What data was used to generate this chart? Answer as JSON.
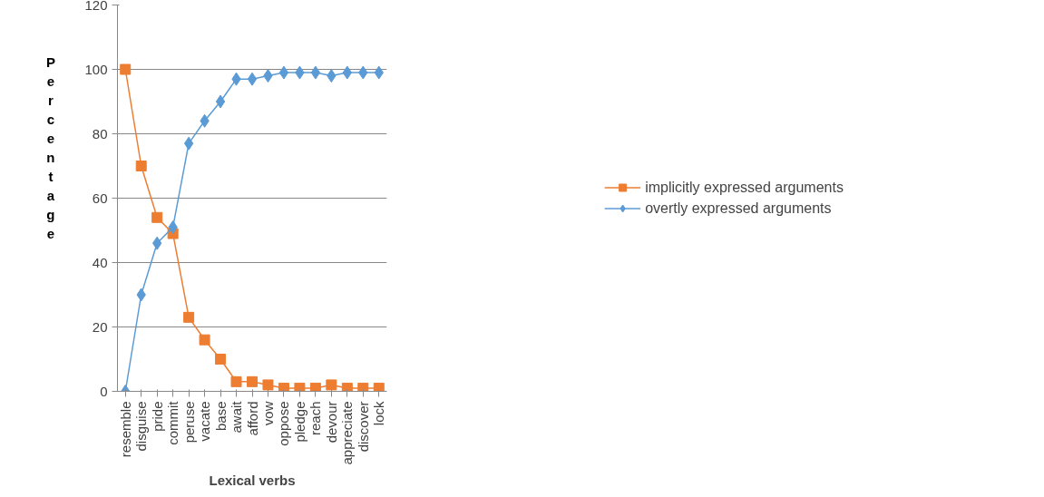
{
  "chart_data": {
    "type": "line",
    "xlabel": "Lexical verbs",
    "ylabel": "Percentage",
    "categories": [
      "resemble",
      "disguise",
      "pride",
      "commit",
      "peruse",
      "vacate",
      "base",
      "await",
      "afford",
      "vow",
      "oppose",
      "pledge",
      "reach",
      "devour",
      "appreciate",
      "discover",
      "lock"
    ],
    "series": [
      {
        "name": "implicitly expressed arguments",
        "color": "#ed7d31",
        "marker": "square",
        "values": [
          100,
          70,
          54,
          49,
          23,
          16,
          10,
          3,
          3,
          2,
          1,
          1,
          1,
          2,
          1,
          1,
          1
        ]
      },
      {
        "name": "overtly expressed arguments",
        "color": "#5b9bd5",
        "marker": "diamond",
        "values": [
          0,
          30,
          46,
          51,
          77,
          84,
          90,
          97,
          97,
          98,
          99,
          99,
          99,
          98,
          99,
          99,
          99
        ]
      }
    ],
    "ylim": [
      0,
      120
    ],
    "yticks": [
      0,
      20,
      40,
      60,
      80,
      100,
      120
    ],
    "grid": "y",
    "legend": "right"
  }
}
